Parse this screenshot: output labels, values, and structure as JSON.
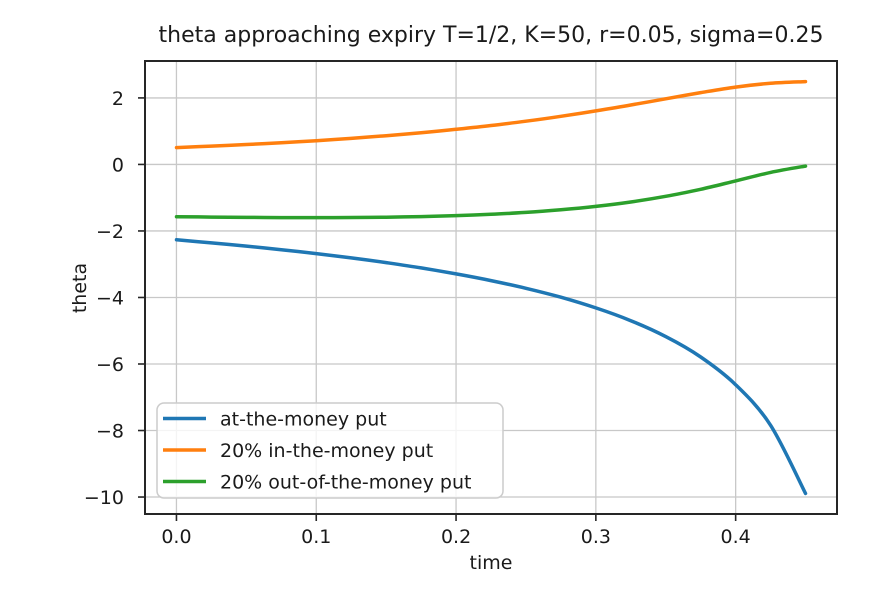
{
  "chart_data": {
    "type": "line",
    "title": "theta approaching expiry T=1/2, K=50, r=0.05, sigma=0.25",
    "xlabel": "time",
    "ylabel": "theta",
    "xlim": [
      -0.0225,
      0.4725
    ],
    "ylim": [
      -10.51,
      3.11
    ],
    "grid": true,
    "legend_position": "lower left",
    "xtick_values": [
      0.0,
      0.1,
      0.2,
      0.3,
      0.4
    ],
    "xtick_labels": [
      "0.0",
      "0.1",
      "0.2",
      "0.3",
      "0.4"
    ],
    "ytick_values": [
      2,
      0,
      -2,
      -4,
      -6,
      -8,
      -10
    ],
    "ytick_labels": [
      "2",
      "0",
      "−2",
      "−4",
      "−6",
      "−8",
      "−10"
    ],
    "x": [
      0.0,
      0.025,
      0.05,
      0.075,
      0.1,
      0.125,
      0.15,
      0.175,
      0.2,
      0.225,
      0.25,
      0.275,
      0.3,
      0.325,
      0.35,
      0.375,
      0.4,
      0.425,
      0.45
    ],
    "series": [
      {
        "name": "at-the-money put",
        "color": "#1f77b4",
        "values": [
          -2.267,
          -2.358,
          -2.456,
          -2.564,
          -2.681,
          -2.81,
          -2.952,
          -3.111,
          -3.29,
          -3.492,
          -3.724,
          -3.993,
          -4.313,
          -4.697,
          -5.175,
          -5.79,
          -6.623,
          -7.844,
          -9.891
        ]
      },
      {
        "name": "20% in-the-money put",
        "color": "#ff7f0e",
        "values": [
          0.507,
          0.55,
          0.598,
          0.653,
          0.714,
          0.784,
          0.864,
          0.953,
          1.055,
          1.17,
          1.3,
          1.446,
          1.609,
          1.786,
          1.973,
          2.159,
          2.325,
          2.441,
          2.49
        ]
      },
      {
        "name": "20% out-of-the-money put",
        "color": "#2ca02c",
        "values": [
          -1.571,
          -1.582,
          -1.591,
          -1.597,
          -1.598,
          -1.595,
          -1.585,
          -1.567,
          -1.539,
          -1.499,
          -1.442,
          -1.365,
          -1.263,
          -1.13,
          -0.958,
          -0.746,
          -0.495,
          -0.239,
          -0.05
        ]
      }
    ],
    "colors": {
      "spine": "#262626",
      "grid": "#c8c8c8",
      "tick": "#262626",
      "legend_border": "#cccccc",
      "legend_background": "rgba(255,255,255,0.8)"
    }
  }
}
